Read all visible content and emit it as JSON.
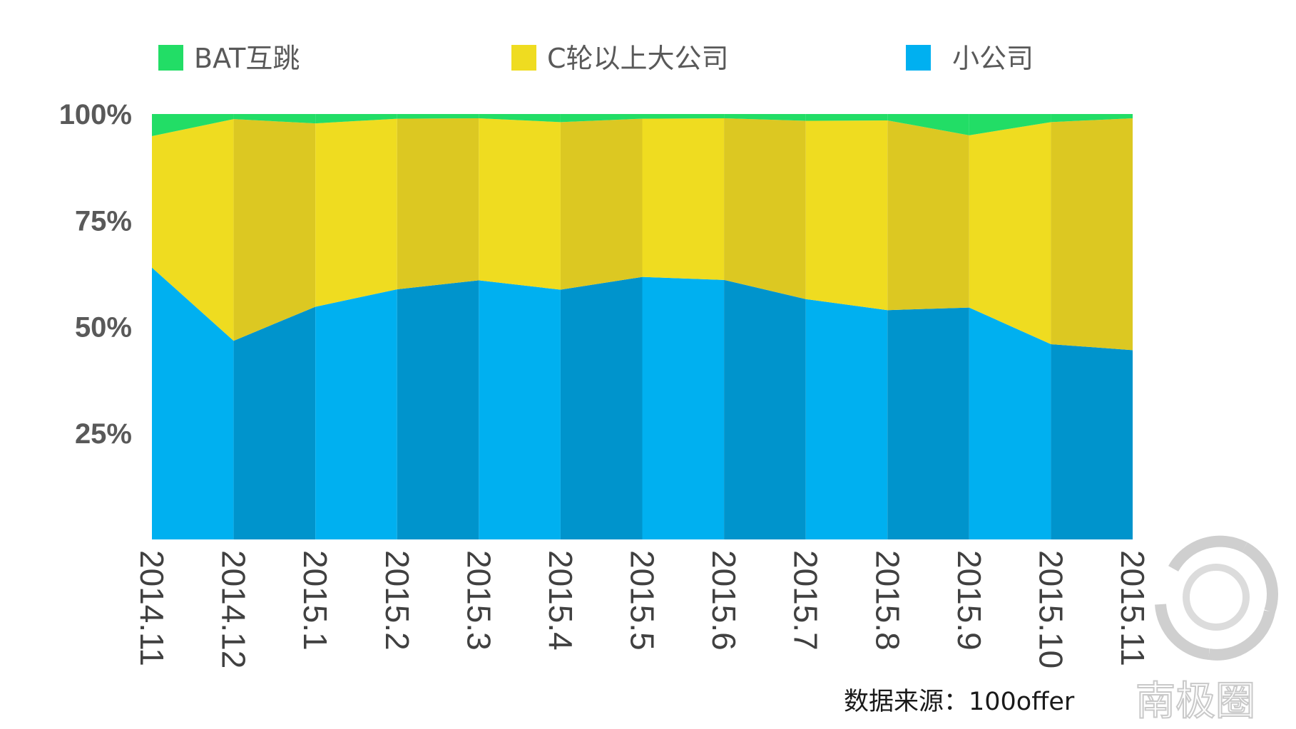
{
  "legend": [
    {
      "name": "BAT互跳",
      "color": "#22dd66"
    },
    {
      "name": "C轮以上大公司",
      "color": "#efdc20"
    },
    {
      "name": "小公司",
      "color": "#00b0f0"
    }
  ],
  "source_note": "数据来源：100offer",
  "watermark": {
    "text": "南极圈",
    "icon": "petal-logo-icon"
  },
  "chart_data": {
    "type": "area",
    "stacked": true,
    "percent": true,
    "categories": [
      "2014.11",
      "2014.12",
      "2015.1",
      "2015.2",
      "2015.3",
      "2015.4",
      "2015.5",
      "2015.6",
      "2015.7",
      "2015.8",
      "2015.9",
      "2015.10",
      "2015.11"
    ],
    "series": [
      {
        "name": "小公司",
        "color": "#00b0f0",
        "shade": "#0094cc",
        "values": [
          63.9,
          46.7,
          54.7,
          58.8,
          60.9,
          58.7,
          61.7,
          61.0,
          56.5,
          53.9,
          54.5,
          45.9,
          44.5
        ]
      },
      {
        "name": "C轮以上大公司",
        "color": "#efdc20",
        "shade": "#dcc822",
        "values": [
          30.9,
          52.1,
          43.1,
          40.1,
          38.1,
          39.4,
          37.2,
          38.0,
          41.9,
          44.6,
          40.5,
          52.2,
          54.5
        ]
      },
      {
        "name": "BAT互跳",
        "color": "#22dd66",
        "shade": "#22dd66",
        "values": [
          5.2,
          1.2,
          2.2,
          1.1,
          1.0,
          1.9,
          1.1,
          1.0,
          1.6,
          1.5,
          5.0,
          1.9,
          1.0
        ]
      }
    ],
    "yticks": [
      "25%",
      "50%",
      "75%",
      "100%"
    ],
    "ytick_values": [
      25,
      50,
      75,
      100
    ],
    "ylim": [
      0,
      100
    ],
    "grid": false,
    "legend_position": "top"
  }
}
